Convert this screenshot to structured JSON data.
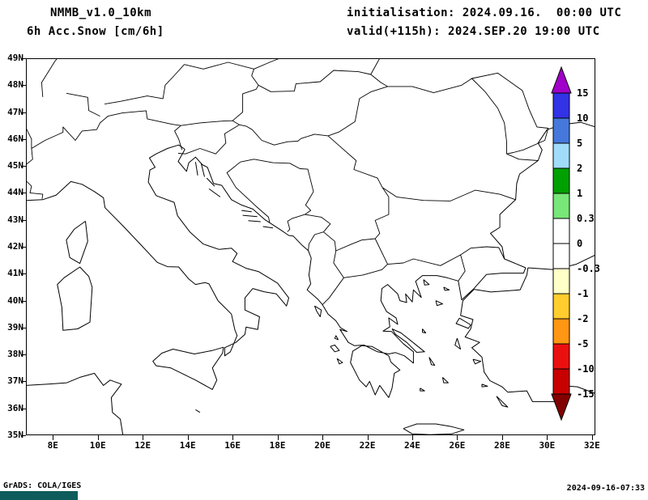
{
  "header": {
    "model_line1": "NMMB_v1.0_10km",
    "model_line2": "6h Acc.Snow [cm/6h]",
    "init_line": "initialisation: 2024.09.16.  00:00 UTC",
    "valid_line": "valid(+115h): 2024.SEP.20 19:00 UTC"
  },
  "axes": {
    "lat_labels": [
      "49N",
      "48N",
      "47N",
      "46N",
      "45N",
      "44N",
      "43N",
      "42N",
      "41N",
      "40N",
      "39N",
      "38N",
      "37N",
      "36N",
      "35N"
    ],
    "lon_labels": [
      "8E",
      "10E",
      "12E",
      "14E",
      "16E",
      "18E",
      "20E",
      "22E",
      "24E",
      "26E",
      "28E",
      "30E",
      "32E"
    ]
  },
  "colorbar": {
    "labels": [
      "15",
      "10",
      "5",
      "2",
      "1",
      "0.3",
      "0",
      "-0.3",
      "-1",
      "-2",
      "-5",
      "-10",
      "-15"
    ],
    "segment_colors": [
      "#3232e6",
      "#4678dc",
      "#a0dcfa",
      "#00a000",
      "#78e678",
      "#ffffff",
      "#ffffff",
      "#ffffc8",
      "#ffcd2e",
      "#ff9614",
      "#eb1010",
      "#c80000"
    ],
    "arrow_top_color": "#a000c8",
    "arrow_bottom_color": "#820000"
  },
  "footer": {
    "credit": "GrADS: COLA/IGES",
    "timestamp": "2024-09-16-07:33",
    "logo_color": "#0e5c5c"
  },
  "line_color": "#000000"
}
